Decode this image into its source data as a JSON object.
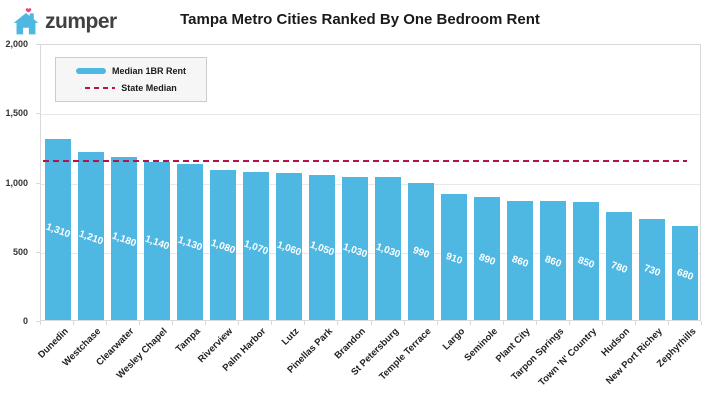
{
  "header": {
    "logo_text": "zumper",
    "title": "Tampa Metro Cities Ranked By One Bedroom Rent"
  },
  "legend": {
    "items": [
      {
        "label": "Median 1BR Rent"
      },
      {
        "label": "State Median"
      }
    ]
  },
  "chart_data": {
    "type": "bar",
    "title": "Tampa Metro Cities Ranked By One Bedroom Rent",
    "categories": [
      "Dunedin",
      "Westchase",
      "Clearwater",
      "Wesley Chapel",
      "Tampa",
      "Riverview",
      "Palm Harbor",
      "Lutz",
      "Pinellas Park",
      "Brandon",
      "St Petersburg",
      "Temple Terrace",
      "Largo",
      "Seminole",
      "Plant City",
      "Tarpon Springs",
      "Town 'N' Country",
      "Hudson",
      "New Port Richey",
      "Zephyrhills"
    ],
    "series": [
      {
        "name": "Median 1BR Rent",
        "values": [
          1310,
          1210,
          1180,
          1140,
          1130,
          1080,
          1070,
          1060,
          1050,
          1030,
          1030,
          990,
          910,
          890,
          860,
          860,
          850,
          780,
          730,
          680
        ]
      }
    ],
    "value_labels": [
      "1,310",
      "1,210",
      "1,180",
      "1,140",
      "1,130",
      "1,080",
      "1,070",
      "1,060",
      "1,050",
      "1,030",
      "1,030",
      "990",
      "910",
      "890",
      "860",
      "860",
      "850",
      "780",
      "730",
      "680"
    ],
    "state_median": {
      "label": "State Median",
      "value": 1160
    },
    "xlabel": "",
    "ylabel": "",
    "ylim": [
      0,
      2000
    ],
    "yticks": [
      0,
      500,
      1000,
      1500,
      2000
    ],
    "ytick_labels": [
      "0",
      "500",
      "1,000",
      "1,500",
      "2,000"
    ],
    "grid": true,
    "legend_position": "top-left",
    "colors": {
      "bar": "#4eb7e2",
      "state_median_line": "#b8124a",
      "logo_house": "#4eb7e2",
      "logo_heart": "#f0417e",
      "logo_text": "#414141"
    }
  }
}
